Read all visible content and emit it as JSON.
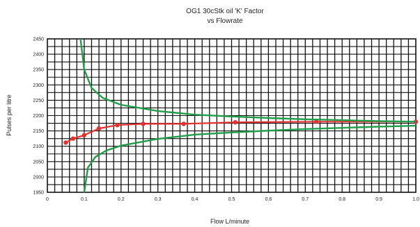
{
  "chart_data": {
    "type": "line",
    "title": "OG1 30cStk oil 'K' Factor",
    "subtitle": "vs Flowrate",
    "xlabel": "Flow L/minute",
    "ylabel": "Pulses per litre",
    "xlim": [
      0,
      1.0
    ],
    "ylim": [
      1950,
      2450
    ],
    "x_ticks": [
      "0",
      "0.1",
      "0.2",
      "0.3",
      "0.4",
      "0.5",
      "0.6",
      "0.7",
      "0.8",
      "0.9",
      "1.0"
    ],
    "y_ticks": [
      "1950",
      "2000",
      "2050",
      "2100",
      "2150",
      "2200",
      "2250",
      "2300",
      "2350",
      "2400",
      "2450"
    ],
    "grid": true,
    "colors": {
      "k_factor": "#e53030",
      "limits": "#1f9e4a",
      "grid": "#111111"
    },
    "series": [
      {
        "role": "k_factor",
        "x": [
          0.05,
          0.07,
          0.1,
          0.14,
          0.19,
          0.26,
          0.37,
          0.51,
          0.73,
          1.0
        ],
        "y": [
          2112,
          2125,
          2136,
          2158,
          2169,
          2173,
          2173,
          2178,
          2180,
          2180
        ],
        "markers": true
      },
      {
        "role": "upper_limit",
        "x": [
          0.09,
          0.1,
          0.12,
          0.15,
          0.2,
          0.3,
          0.4,
          0.5,
          0.6,
          0.7,
          0.8,
          0.9,
          1.0
        ],
        "y": [
          2450,
          2350,
          2290,
          2258,
          2235,
          2215,
          2203,
          2197,
          2192,
          2188,
          2185,
          2182,
          2180
        ],
        "markers": false
      },
      {
        "role": "lower_limit",
        "x": [
          0.1,
          0.11,
          0.13,
          0.16,
          0.2,
          0.3,
          0.4,
          0.5,
          0.6,
          0.7,
          0.8,
          0.9,
          1.0
        ],
        "y": [
          1950,
          2030,
          2065,
          2086,
          2102,
          2124,
          2138,
          2145,
          2151,
          2156,
          2160,
          2164,
          2167
        ],
        "markers": false
      }
    ]
  }
}
